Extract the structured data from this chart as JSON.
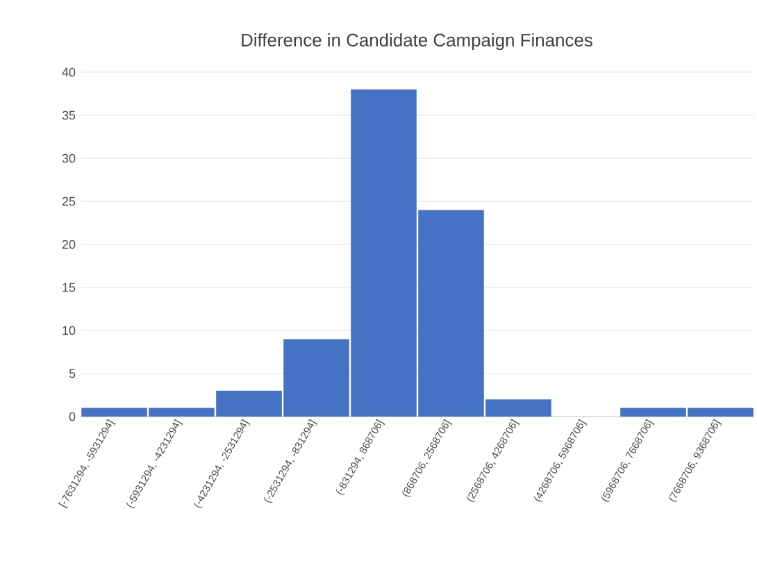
{
  "chart_data": {
    "type": "bar",
    "title": "Difference in Candidate Campaign Finances",
    "categories": [
      "[-7631294, -5931294]",
      "(-5931294, -4231294]",
      "(-4231294, -2531294]",
      "(-2531294, -831294]",
      "(-831294, 868706]",
      "(868706, 2568706]",
      "(2568706, 4268706]",
      "(4268706, 5968706]",
      "(5968706, 7668706]",
      "(7668706, 9368706]"
    ],
    "values": [
      1,
      1,
      3,
      9,
      38,
      24,
      2,
      0,
      1,
      1
    ],
    "color": "#4472c4",
    "ylim": [
      0,
      40
    ],
    "yticks": [
      0,
      5,
      10,
      15,
      20,
      25,
      30,
      35,
      40
    ],
    "grid": "y"
  }
}
